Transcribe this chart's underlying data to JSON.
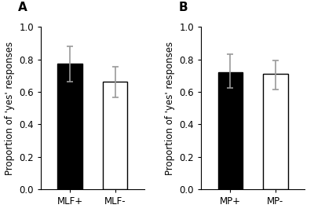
{
  "panel_A": {
    "label": "A",
    "categories": [
      "MLF+",
      "MLF-"
    ],
    "values": [
      0.775,
      0.665
    ],
    "colors": [
      "black",
      "white"
    ],
    "edgecolors": [
      "black",
      "black"
    ],
    "yerr_upper": [
      0.107,
      0.09
    ],
    "yerr_lower": [
      0.11,
      0.1
    ]
  },
  "panel_B": {
    "label": "B",
    "categories": [
      "MP+",
      "MP-"
    ],
    "values": [
      0.72,
      0.71
    ],
    "colors": [
      "black",
      "white"
    ],
    "edgecolors": [
      "black",
      "black"
    ],
    "yerr_upper": [
      0.11,
      0.085
    ],
    "yerr_lower": [
      0.095,
      0.095
    ]
  },
  "ylabel": "Proportion of 'yes' responses",
  "ylim": [
    0,
    1.0
  ],
  "yticks": [
    0,
    0.2,
    0.4,
    0.6,
    0.8,
    1.0
  ],
  "bar_width": 0.55,
  "error_color": "#999999",
  "error_capsize": 3,
  "error_linewidth": 1.2,
  "background_color": "#ffffff",
  "label_fontsize": 8.5,
  "tick_fontsize": 8.5,
  "panel_label_fontsize": 11
}
